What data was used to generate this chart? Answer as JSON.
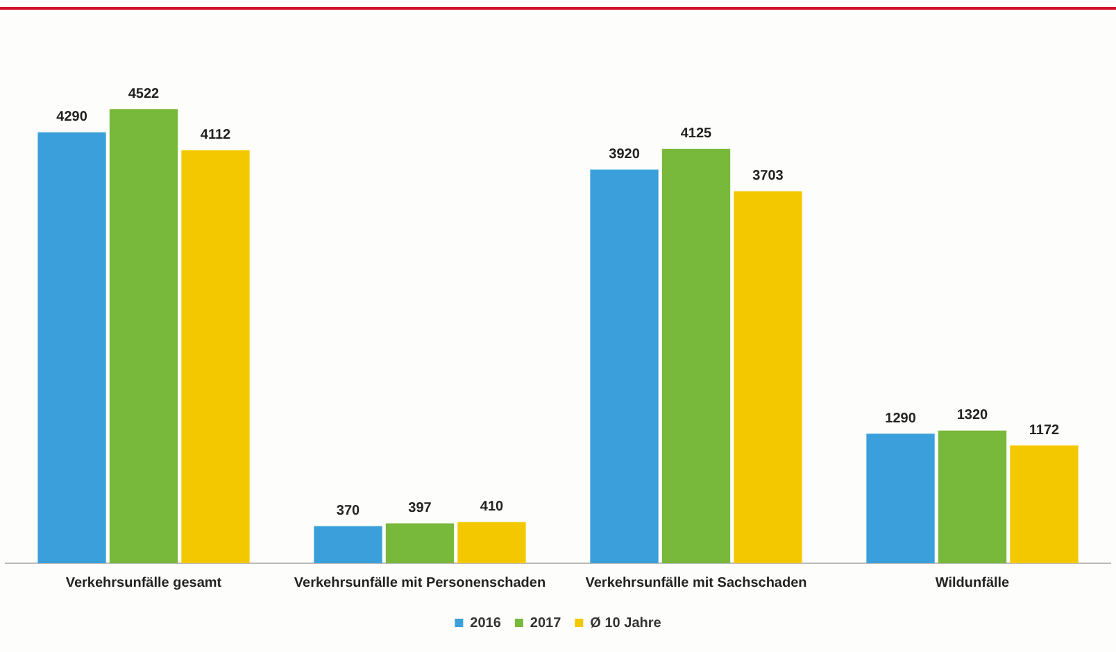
{
  "chart_data": {
    "type": "bar",
    "categories": [
      "Verkehrsunfälle gesamt",
      "Verkehrsunfälle mit Personenschaden",
      "Verkehrsunfälle mit Sachschaden",
      "Wildunfälle"
    ],
    "series": [
      {
        "name": "2016",
        "color": "#3a9fdb",
        "values": [
          4290,
          370,
          3920,
          1290
        ]
      },
      {
        "name": "2017",
        "color": "#78b83a",
        "values": [
          4522,
          397,
          4125,
          1320
        ]
      },
      {
        "name": "Ø 10 Jahre",
        "color": "#f4c800",
        "values": [
          4112,
          410,
          3703,
          1172
        ]
      }
    ],
    "data_labels": true,
    "grid": false,
    "legend": "bottom",
    "tick_labels": "x"
  }
}
